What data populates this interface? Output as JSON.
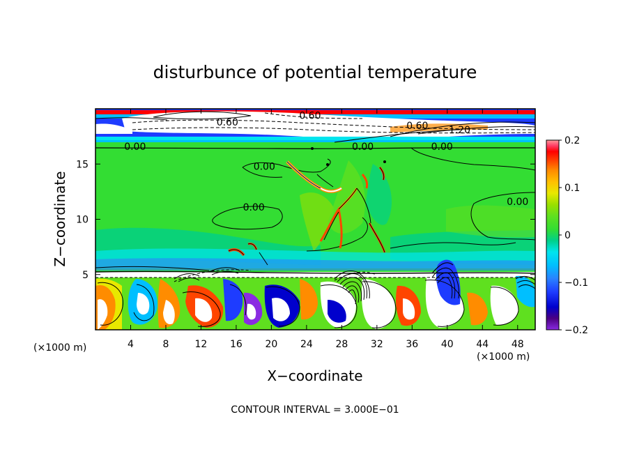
{
  "chart_data": {
    "type": "heatmap",
    "title": "disturbunce of potential temperature",
    "xlabel": "X−coordinate",
    "ylabel": "Z−coordinate",
    "x_unit": "(×1000 m)",
    "x_unit_right": "(×1000 m)",
    "footer": "CONTOUR INTERVAL = 3.000E−01",
    "xlim": [
      0,
      50
    ],
    "ylim": [
      0,
      20
    ],
    "x_ticks": [
      4,
      8,
      12,
      16,
      20,
      24,
      28,
      32,
      36,
      40,
      44,
      48
    ],
    "x_tick_labels": [
      "4",
      "8",
      "12",
      "16",
      "20",
      "24",
      "28",
      "32",
      "36",
      "40",
      "44",
      "48"
    ],
    "y_ticks": [
      5,
      10,
      15
    ],
    "y_tick_labels": [
      "5",
      "10",
      "15"
    ],
    "colorbar": {
      "range": [
        -0.2,
        0.2
      ],
      "ticks": [
        0.2,
        0.1,
        0,
        -0.1,
        -0.2
      ],
      "tick_labels": [
        "0.2",
        "0.1",
        "0",
        "−0.1",
        "−0.2"
      ],
      "colors": [
        "#8a2be2",
        "#4b0082",
        "#0000cd",
        "#1e3cff",
        "#2a82ff",
        "#00bfff",
        "#00e5ee",
        "#00d08a",
        "#33dd33",
        "#5fe01f",
        "#9ae000",
        "#e8e800",
        "#ffc000",
        "#ff8c00",
        "#ff4500",
        "#ff0000",
        "#ff3c64",
        "#ff9a9a"
      ]
    },
    "contour_labels": [
      {
        "text": "0.60",
        "x": 15.0,
        "y": 18.8
      },
      {
        "text": "0.60",
        "x": 24.4,
        "y": 19.4
      },
      {
        "text": "0.60",
        "x": 36.6,
        "y": 18.5
      },
      {
        "text": "1.20",
        "x": 41.4,
        "y": 18.1
      },
      {
        "text": "0.00",
        "x": 4.5,
        "y": 16.6
      },
      {
        "text": "0.00",
        "x": 30.4,
        "y": 16.6
      },
      {
        "text": "0.00",
        "x": 39.4,
        "y": 16.6
      },
      {
        "text": "0.00",
        "x": 19.2,
        "y": 14.8
      },
      {
        "text": "0.00",
        "x": 18.0,
        "y": 11.1
      },
      {
        "text": "0.00",
        "x": 48.0,
        "y": 11.6
      }
    ]
  }
}
